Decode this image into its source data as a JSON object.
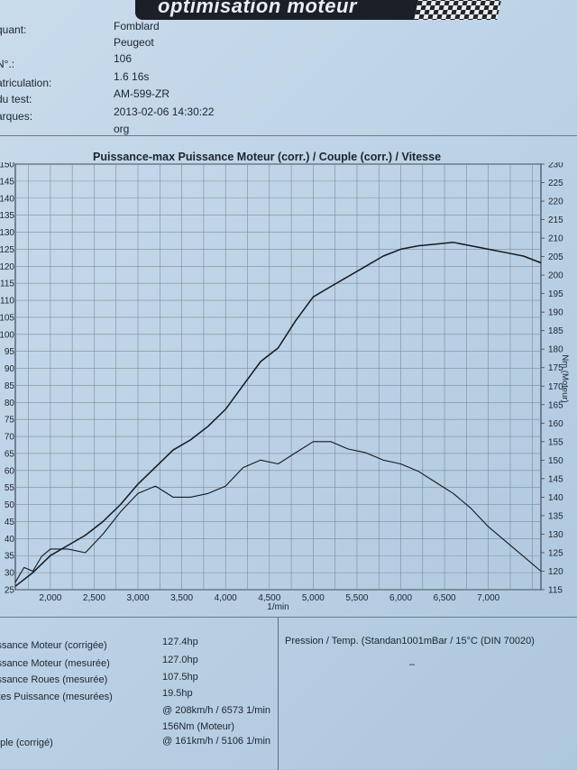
{
  "header": {
    "brand": "optimisation moteur",
    "fields": [
      {
        "label": "quant:",
        "value": "Fomblard"
      },
      {
        "label": "",
        "value": "Peugeot"
      },
      {
        "label": "N°.:",
        "value": "106"
      },
      {
        "label": "atriculation:",
        "value": "1.6 16s"
      },
      {
        "label": "du test:",
        "value": "AM-599-ZR"
      },
      {
        "label": "arques:",
        "value": "2013-02-06 14:30:22"
      },
      {
        "label": "",
        "value": "org"
      }
    ]
  },
  "chart_data": {
    "type": "line",
    "title": "Puissance-max Puissance Moteur (corr.) / Couple (corr.) / Vitesse",
    "xlabel": "1/min",
    "ylabel_right": "Nm (Moteur)",
    "xlim": [
      1600,
      7600
    ],
    "ylim_left": [
      25,
      150
    ],
    "ylim_right": [
      115,
      230
    ],
    "x_ticks": [
      "2,000",
      "2,500",
      "3,000",
      "3,500",
      "4,000",
      "4,500",
      "5,000",
      "5,500",
      "6,000",
      "6,500",
      "7,000"
    ],
    "y_left_ticks": [
      "25",
      "30",
      "35",
      "40",
      "45",
      "50",
      "55",
      "60",
      "65",
      "70",
      "75",
      "80",
      "85",
      "90",
      "95",
      "100",
      "105",
      "110",
      "115",
      "120",
      "125",
      "130",
      "135",
      "140",
      "145",
      "150"
    ],
    "y_right_ticks": [
      "115",
      "120",
      "125",
      "130",
      "135",
      "140",
      "145",
      "150",
      "155",
      "160",
      "165",
      "170",
      "175",
      "180",
      "185",
      "190",
      "195",
      "200",
      "205",
      "210",
      "215",
      "220",
      "225",
      "230"
    ],
    "grid": true,
    "series": [
      {
        "axis": "left",
        "x": [
          1600,
          1800,
          2000,
          2200,
          2400,
          2600,
          2800,
          3000,
          3200,
          3400,
          3600,
          3800,
          4000,
          4200,
          4400,
          4600,
          4800,
          5000,
          5200,
          5400,
          5600,
          5800,
          6000,
          6200,
          6400,
          6600,
          6800,
          7000,
          7200,
          7400,
          7600
        ],
        "values": [
          26,
          30,
          35,
          38,
          41,
          45,
          50,
          56,
          61,
          66,
          69,
          73,
          78,
          85,
          92,
          96,
          104,
          111,
          114,
          117,
          120,
          123,
          125,
          126,
          126.5,
          127,
          126,
          125,
          124,
          123,
          121
        ]
      },
      {
        "axis": "right",
        "x": [
          1600,
          1700,
          1800,
          1900,
          2000,
          2200,
          2400,
          2600,
          2800,
          3000,
          3200,
          3400,
          3600,
          3800,
          4000,
          4200,
          4400,
          4600,
          4800,
          5000,
          5200,
          5400,
          5600,
          5800,
          6000,
          6200,
          6400,
          6600,
          6800,
          7000,
          7200,
          7400,
          7600
        ],
        "values": [
          117,
          121,
          120,
          124,
          126,
          126,
          125,
          130,
          136,
          141,
          143,
          140,
          140,
          141,
          143,
          148,
          150,
          149,
          152,
          155,
          155,
          153,
          152,
          150,
          149,
          147,
          144,
          141,
          137,
          132,
          128,
          124,
          120
        ]
      }
    ]
  },
  "results": {
    "rows": [
      {
        "label": "issance Moteur (corrigée)",
        "value": "127.4hp"
      },
      {
        "label": "issance Moteur (mesurée)",
        "value": "127.0hp"
      },
      {
        "label": "issance Roues (mesurée)",
        "value": "107.5hp"
      },
      {
        "label": "rtes Puissance (mesurées)",
        "value": "19.5hp"
      },
      {
        "label": "",
        "value": "@ 208km/h / 6573 1/min"
      },
      {
        "label": "",
        "value": "156Nm (Moteur)"
      },
      {
        "label": "uple (corrigé)",
        "value": "@ 161km/h / 5106 1/min"
      }
    ],
    "conditions": "Pression / Temp. (Standan1001mBar / 15°C   (DIN 70020)",
    "conditions_value": "–"
  }
}
